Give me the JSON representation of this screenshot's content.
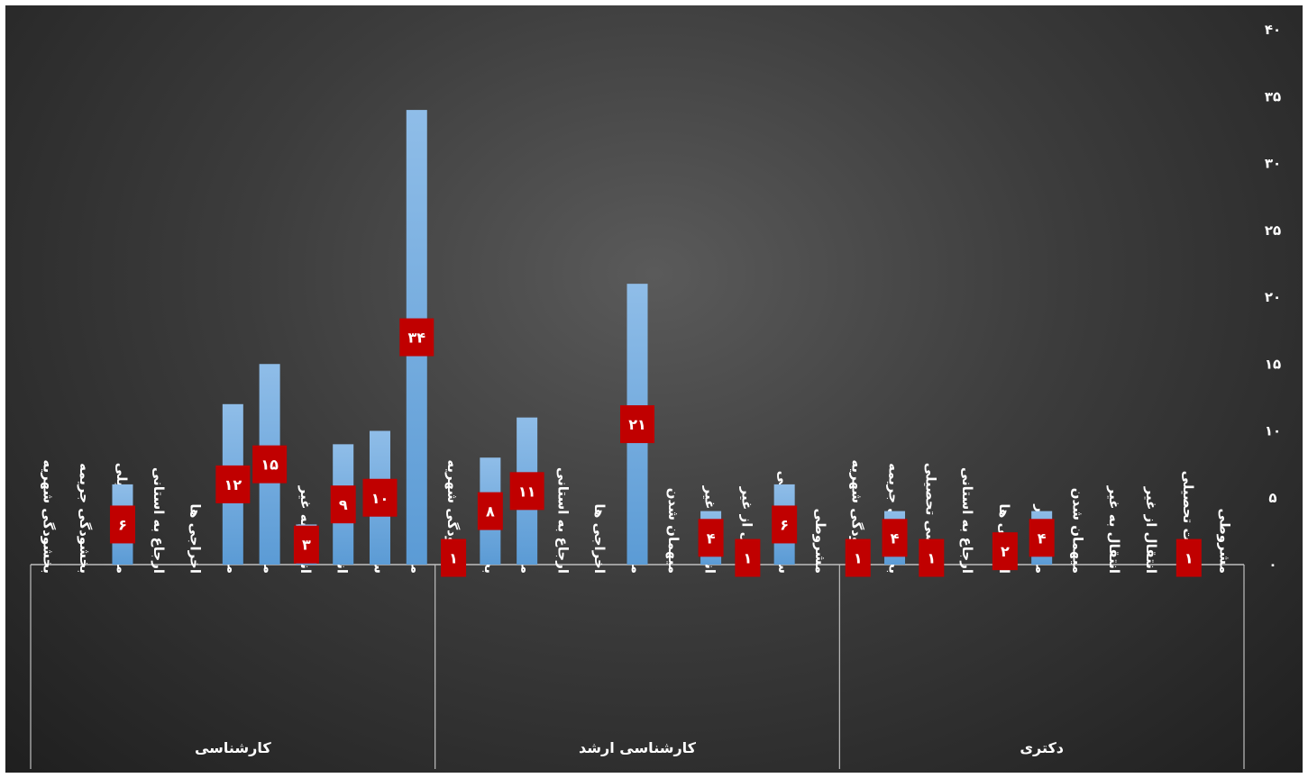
{
  "chart_data": {
    "type": "bar",
    "ylim": [
      0,
      40
    ],
    "y_ticks": [
      "۰",
      "۵",
      "۱۰",
      "۱۵",
      "۲۰",
      "۲۵",
      "۳۰",
      "۳۵",
      "۴۰"
    ],
    "grid": false,
    "legend": "none",
    "colors": {
      "bar": "#5b9bd5",
      "bar_light": "#8fbde8",
      "label_bg": "#c00000",
      "text": "#ffffff",
      "axis": "#bfbfbf"
    },
    "categories": [
      "بخشودگی شهریه",
      "بخشودگی جریمه",
      "مرخصی تحصیلی",
      "ارجاع به استانی",
      "اخراجی ها",
      "موارد دیگر",
      "میهمان شدن",
      "انتقال به غیر",
      "انتقال از غیر",
      "سنوات تحصیلی",
      "مشروطی"
    ],
    "groups": [
      {
        "name": "کارشناسی",
        "values": [
          null,
          null,
          6,
          null,
          null,
          12,
          15,
          3,
          9,
          10,
          34
        ],
        "labels": [
          "",
          "",
          "۶",
          "",
          "",
          "۱۲",
          "۱۵",
          "۳",
          "۹",
          "۱۰",
          "۳۴"
        ]
      },
      {
        "name": "کارشناسی  ارشد",
        "values": [
          1,
          8,
          11,
          null,
          null,
          21,
          null,
          4,
          1,
          6,
          null
        ],
        "labels": [
          "۱",
          "۸",
          "۱۱",
          "",
          "",
          "۲۱",
          "",
          "۴",
          "۱",
          "۶",
          ""
        ]
      },
      {
        "name": "دکتری",
        "values": [
          1,
          4,
          1,
          null,
          2,
          4,
          null,
          null,
          null,
          1,
          null
        ],
        "labels": [
          "۱",
          "۴",
          "۱",
          "",
          "۲",
          "۴",
          "",
          "",
          "",
          "۱",
          ""
        ]
      }
    ]
  }
}
